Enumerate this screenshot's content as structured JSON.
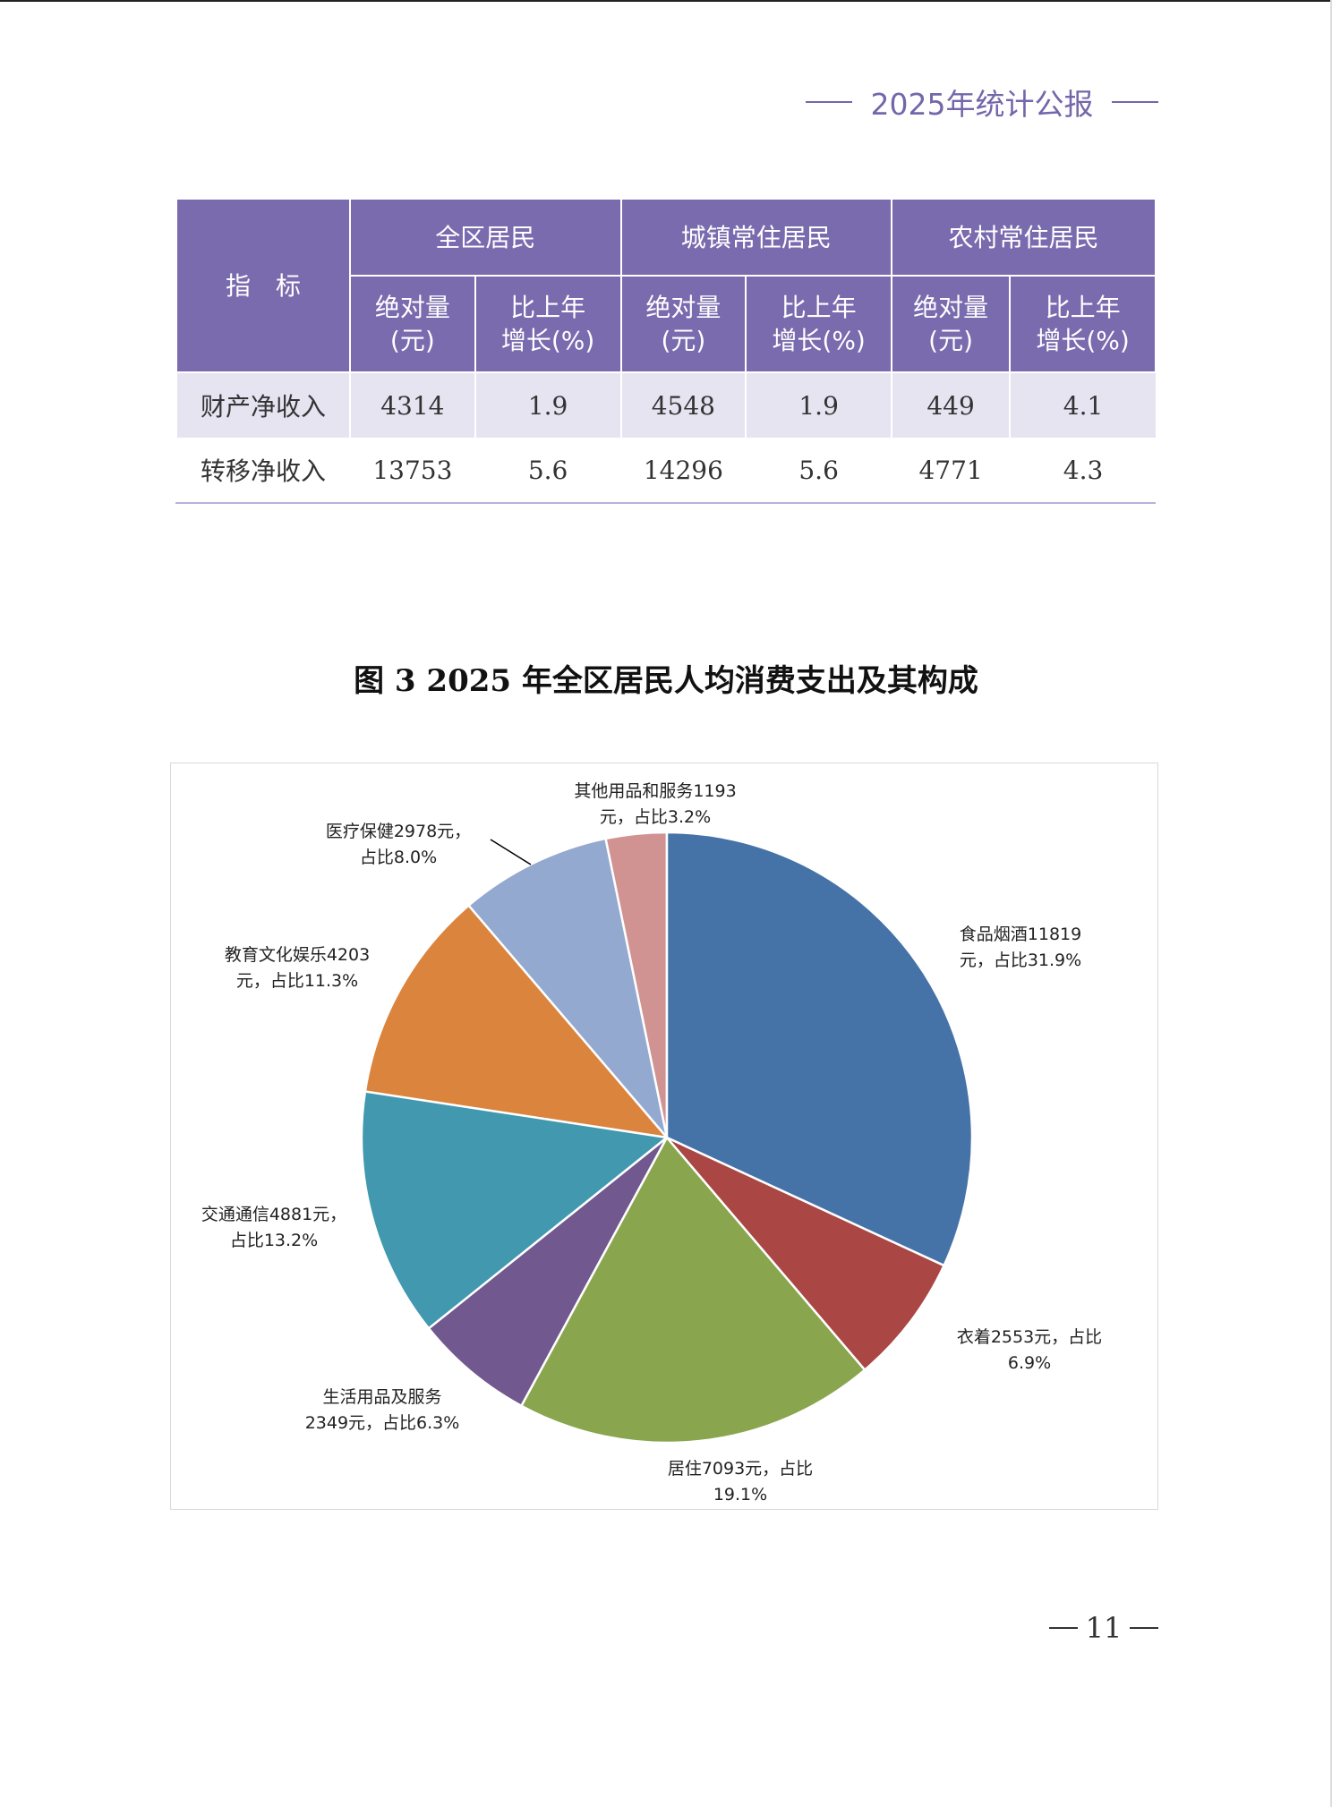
{
  "header": {
    "title": "2025年统计公报"
  },
  "table": {
    "index_header": "指　标",
    "groups": [
      "全区居民",
      "城镇常住居民",
      "农村常住居民"
    ],
    "sub_headers": [
      {
        "l1": "绝对量",
        "l2": "(元)"
      },
      {
        "l1": "比上年",
        "l2": "增长(%)"
      }
    ],
    "rows": [
      {
        "label": "财产净收入",
        "values": [
          "4314",
          "1.9",
          "4548",
          "1.9",
          "449",
          "4.1"
        ]
      },
      {
        "label": "转移净收入",
        "values": [
          "13753",
          "5.6",
          "14296",
          "5.6",
          "4771",
          "4.3"
        ]
      }
    ]
  },
  "figure_title": "图 3  2025 年全区居民人均消费支出及其构成",
  "chart_data": {
    "type": "pie",
    "title": "图 3  2025 年全区居民人均消费支出及其构成",
    "start": "top, clockwise",
    "slices": [
      {
        "name": "食品烟酒",
        "value": 11819,
        "percent": 31.9,
        "color": "#4572a7",
        "label_l1": "食品烟酒11819",
        "label_l2": "元，占比31.9%"
      },
      {
        "name": "衣着",
        "value": 2553,
        "percent": 6.9,
        "color": "#aa4643",
        "label_l1": "衣着2553元，占比",
        "label_l2": "6.9%"
      },
      {
        "name": "居住",
        "value": 7093,
        "percent": 19.1,
        "color": "#89a54e",
        "label_l1": "居住7093元，占比",
        "label_l2": "19.1%"
      },
      {
        "name": "生活用品及服务",
        "value": 2349,
        "percent": 6.3,
        "color": "#71588f",
        "label_l1": "生活用品及服务",
        "label_l2": "2349元，占比6.3%"
      },
      {
        "name": "交通通信",
        "value": 4881,
        "percent": 13.2,
        "color": "#4198af",
        "label_l1": "交通通信4881元，",
        "label_l2": "占比13.2%"
      },
      {
        "name": "教育文化娱乐",
        "value": 4203,
        "percent": 11.3,
        "color": "#db843d",
        "label_l1": "教育文化娱乐4203",
        "label_l2": "元，占比11.3%"
      },
      {
        "name": "医疗保健",
        "value": 2978,
        "percent": 8.0,
        "color": "#93a9cf",
        "label_l1": "医疗保健2978元，",
        "label_l2": "占比8.0%"
      },
      {
        "name": "其他用品和服务",
        "value": 1193,
        "percent": 3.2,
        "color": "#d19392",
        "label_l1": "其他用品和服务1193",
        "label_l2": "元，占比3.2%"
      }
    ]
  },
  "footer": {
    "page_number": "11"
  }
}
